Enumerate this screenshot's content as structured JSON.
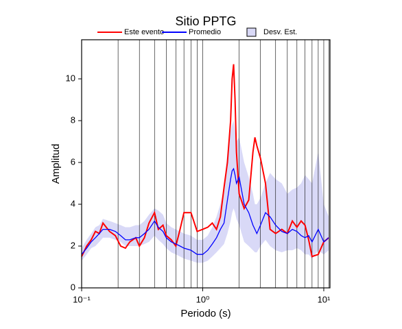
{
  "chart_data": {
    "type": "line",
    "title": "Sitio PPTG",
    "x_label": "Periodo (s)",
    "y_label": "Amplitud",
    "log_x": true,
    "grid": true,
    "xlim": [
      0.1,
      11.25
    ],
    "ylim": [
      0,
      11.87
    ],
    "xticks": [
      {
        "value": 0.1,
        "label": "10⁻¹"
      },
      {
        "value": 1,
        "label": "10⁰"
      },
      {
        "value": 10,
        "label": "10¹"
      }
    ],
    "xgrid": [
      0.2,
      0.3,
      0.4,
      0.5,
      0.6,
      0.7,
      0.8,
      0.9,
      2,
      3,
      4,
      5,
      6,
      7,
      8,
      9,
      11
    ],
    "yticks": [
      0,
      2,
      4,
      6,
      8,
      10
    ],
    "x": [
      0.1,
      0.11,
      0.12,
      0.13,
      0.14,
      0.15,
      0.17,
      0.19,
      0.21,
      0.23,
      0.25,
      0.28,
      0.3,
      0.33,
      0.36,
      0.4,
      0.43,
      0.47,
      0.5,
      0.55,
      0.6,
      0.65,
      0.7,
      0.8,
      0.9,
      1.0,
      1.1,
      1.2,
      1.3,
      1.4,
      1.5,
      1.6,
      1.7,
      1.75,
      1.8,
      1.85,
      1.9,
      2.0,
      2.2,
      2.4,
      2.6,
      2.7,
      2.8,
      3.0,
      3.3,
      3.6,
      4,
      4.5,
      5,
      5.5,
      6,
      6.5,
      7,
      7.5,
      8,
      9,
      10,
      11
    ],
    "band": {
      "name": "Desv. Est.",
      "color": "#d9d9f7",
      "lower": [
        1.3,
        1.6,
        1.9,
        2.0,
        2.2,
        2.4,
        2.4,
        2.3,
        2.2,
        2.0,
        2.0,
        2.0,
        2.0,
        2.1,
        2.2,
        2.5,
        2.3,
        2.1,
        1.9,
        1.7,
        1.6,
        1.5,
        1.4,
        1.3,
        1.2,
        1.2,
        1.3,
        1.5,
        1.7,
        1.9,
        2.1,
        2.6,
        3.2,
        3.6,
        3.8,
        3.6,
        3.3,
        3.0,
        2.2,
        2.0,
        1.8,
        1.7,
        1.7,
        2.0,
        2.3,
        2.0,
        1.8,
        1.7,
        1.8,
        1.8,
        1.9,
        1.8,
        1.6,
        1.6,
        1.4,
        1.8,
        1.6,
        1.8
      ],
      "upper": [
        1.9,
        2.3,
        2.6,
        2.9,
        3.0,
        3.3,
        3.2,
        3.1,
        3.0,
        2.9,
        2.9,
        3.0,
        3.0,
        3.2,
        3.5,
        3.8,
        3.7,
        3.5,
        3.1,
        2.9,
        2.8,
        2.7,
        2.6,
        2.5,
        2.3,
        2.3,
        2.5,
        2.9,
        3.4,
        4.0,
        4.8,
        6.5,
        7.5,
        7.8,
        8.0,
        7.5,
        7.0,
        7.2,
        6.0,
        5.3,
        4.5,
        4.0,
        4.0,
        4.3,
        5.0,
        5.5,
        5.2,
        5.0,
        4.5,
        4.7,
        4.8,
        5.0,
        5.4,
        5.2,
        5.0,
        6.5,
        4.0,
        3.4
      ]
    },
    "series": [
      {
        "name": "Este evento",
        "color": "#ff0000",
        "values": [
          1.5,
          2.0,
          2.3,
          2.7,
          2.6,
          3.1,
          2.7,
          2.5,
          2.0,
          1.9,
          2.2,
          2.4,
          2.0,
          2.4,
          3.1,
          3.6,
          2.8,
          3.0,
          2.5,
          2.3,
          2.0,
          2.8,
          3.6,
          3.6,
          2.7,
          2.8,
          2.9,
          3.1,
          2.8,
          3.4,
          4.8,
          6.0,
          8.0,
          10.0,
          10.7,
          9.0,
          6.5,
          4.5,
          3.8,
          4.2,
          6.5,
          7.2,
          6.8,
          6.2,
          5.0,
          2.8,
          2.6,
          2.8,
          2.6,
          3.2,
          2.9,
          3.2,
          3.0,
          2.3,
          1.5,
          1.6,
          2.2,
          2.4
        ]
      },
      {
        "name": "Promedio",
        "color": "#0000ff",
        "values": [
          1.6,
          1.9,
          2.2,
          2.4,
          2.6,
          2.8,
          2.8,
          2.7,
          2.5,
          2.3,
          2.3,
          2.4,
          2.4,
          2.6,
          2.8,
          3.2,
          2.9,
          2.7,
          2.4,
          2.2,
          2.1,
          2.0,
          1.9,
          1.8,
          1.6,
          1.6,
          1.8,
          2.1,
          2.4,
          2.8,
          3.1,
          4.2,
          5.2,
          5.6,
          5.7,
          5.4,
          5.0,
          5.3,
          4.0,
          3.6,
          3.0,
          2.8,
          2.6,
          3.0,
          3.6,
          3.4,
          3.0,
          2.7,
          2.6,
          2.8,
          2.7,
          2.5,
          2.4,
          2.5,
          2.2,
          2.8,
          2.2,
          2.4
        ]
      }
    ]
  }
}
